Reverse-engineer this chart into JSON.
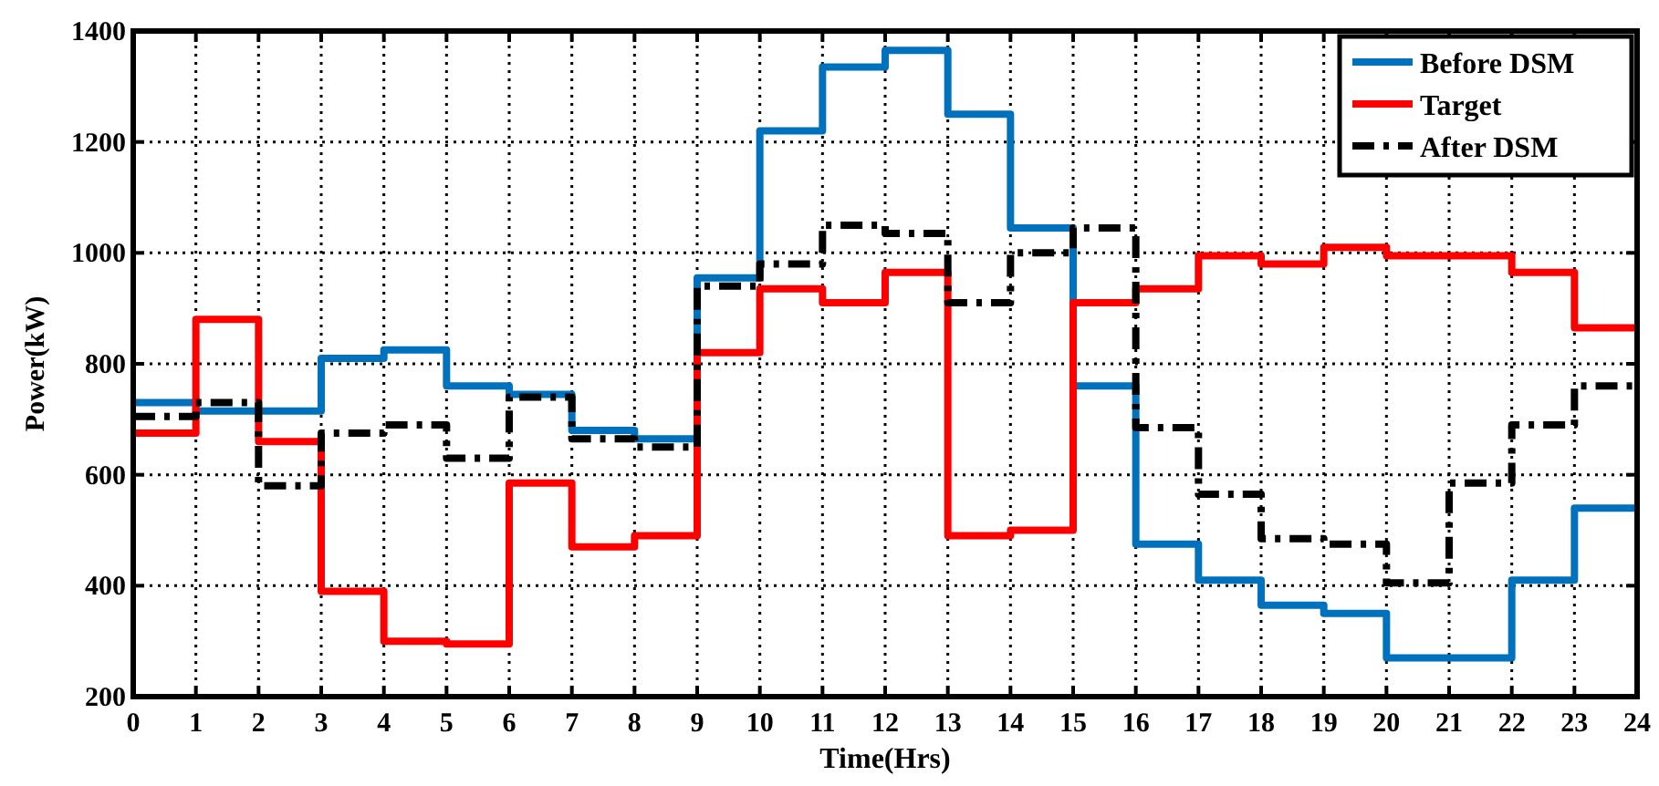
{
  "chart_data": {
    "type": "step",
    "xlabel": "Time(Hrs)",
    "ylabel": "Power(kW)",
    "x": [
      0,
      1,
      2,
      3,
      4,
      5,
      6,
      7,
      8,
      9,
      10,
      11,
      12,
      13,
      14,
      15,
      16,
      17,
      18,
      19,
      20,
      21,
      22,
      23,
      24
    ],
    "series": [
      {
        "name": "Before DSM",
        "color": "#0072bd",
        "line_style": "solid",
        "values": [
          730,
          715,
          715,
          810,
          825,
          760,
          745,
          680,
          665,
          955,
          1220,
          1335,
          1365,
          1250,
          1045,
          760,
          475,
          410,
          365,
          350,
          270,
          270,
          410,
          540,
          540
        ]
      },
      {
        "name": "Target",
        "color": "#ff0000",
        "line_style": "solid",
        "values": [
          675,
          880,
          660,
          390,
          300,
          295,
          585,
          470,
          490,
          820,
          935,
          910,
          965,
          490,
          500,
          910,
          935,
          995,
          980,
          1010,
          995,
          995,
          965,
          865,
          865
        ]
      },
      {
        "name": "After DSM",
        "color": "#000000",
        "line_style": "dashdot",
        "values": [
          705,
          730,
          580,
          675,
          690,
          630,
          740,
          665,
          650,
          940,
          980,
          1050,
          1035,
          910,
          1000,
          1045,
          685,
          565,
          485,
          475,
          405,
          585,
          690,
          760,
          760
        ]
      }
    ],
    "xlim": [
      0,
      24
    ],
    "xticks": [
      0,
      1,
      2,
      3,
      4,
      5,
      6,
      7,
      8,
      9,
      10,
      11,
      12,
      13,
      14,
      15,
      16,
      17,
      18,
      19,
      20,
      21,
      22,
      23,
      24
    ],
    "ylim": [
      200,
      1400
    ],
    "yticks": [
      200,
      400,
      600,
      800,
      1000,
      1200,
      1400
    ],
    "grid": true,
    "legend": "top right"
  }
}
